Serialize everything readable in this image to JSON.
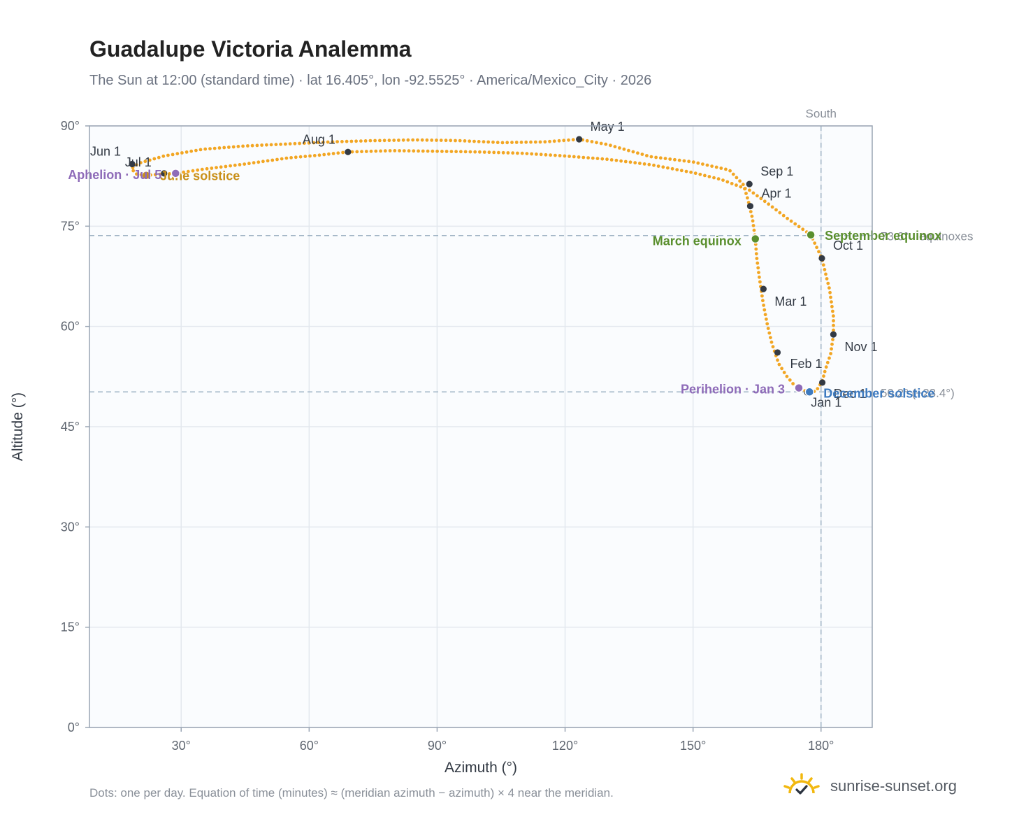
{
  "header": {
    "title": "Guadalupe Victoria Analemma",
    "subtitle": "The Sun at 12:00 (standard time) · lat 16.405°, lon -92.5525° · America/Mexico_City · 2026"
  },
  "footer": {
    "note": "Dots: one per day. Equation of time (minutes) ≈ (meridian azimuth − azimuth) × 4 near the meridian.",
    "brand": "sunrise-sunset.org"
  },
  "colors": {
    "path": "#f2a623",
    "month": "#333a44",
    "equinox": "#5a8f2e",
    "december": "#3d7abf",
    "june": "#c9901a",
    "aphelion": "#8e6bb8"
  },
  "chart_data": {
    "type": "scatter",
    "xlabel": "Azimuth (°)",
    "ylabel": "Altitude (°)",
    "xlim": [
      8.5,
      192
    ],
    "ylim": [
      0,
      90
    ],
    "xticks": [
      30,
      60,
      90,
      120,
      150,
      180
    ],
    "xtick_labels": [
      "30°",
      "60°",
      "90°",
      "120°",
      "150°",
      "180°"
    ],
    "yticks": [
      0,
      15,
      30,
      45,
      60,
      75,
      90
    ],
    "ytick_labels": [
      "0°",
      "15°",
      "30°",
      "45°",
      "60°",
      "75°",
      "90°"
    ],
    "grid": true,
    "meridian": {
      "azimuth": 180,
      "label": "South"
    },
    "reference_lines": [
      {
        "altitude": 73.6,
        "label": "73.6° · equinoxes"
      },
      {
        "altitude": 50.2,
        "label": "50.2° (−23.4°)"
      }
    ],
    "path_anchors": [
      [
        177.3,
        50.2
      ],
      [
        175.4,
        50.5
      ],
      [
        173.6,
        51.3
      ],
      [
        171.9,
        52.6
      ],
      [
        170.1,
        54.4
      ],
      [
        168.5,
        57.4
      ],
      [
        167.5,
        60.0
      ],
      [
        166.4,
        63.6
      ],
      [
        165.6,
        67.0
      ],
      [
        164.9,
        70.4
      ],
      [
        164.6,
        73.1
      ],
      [
        163.9,
        76.2
      ],
      [
        162.9,
        78.9
      ],
      [
        161.8,
        81.2
      ],
      [
        158.5,
        83.4
      ],
      [
        150.0,
        84.6
      ],
      [
        140.0,
        85.4
      ],
      [
        130.0,
        87.2
      ],
      [
        123.3,
        88.0
      ],
      [
        115.0,
        87.6
      ],
      [
        105.0,
        87.5
      ],
      [
        95.0,
        87.8
      ],
      [
        85.0,
        87.9
      ],
      [
        75.0,
        87.8
      ],
      [
        65.0,
        87.6
      ],
      [
        55.0,
        87.3
      ],
      [
        45.0,
        87.0
      ],
      [
        35.0,
        86.5
      ],
      [
        26.0,
        85.5
      ],
      [
        20.0,
        84.4
      ],
      [
        18.3,
        83.6
      ],
      [
        19.5,
        82.8
      ],
      [
        21.8,
        82.6
      ],
      [
        26.0,
        82.8
      ],
      [
        28.7,
        82.9
      ],
      [
        35.0,
        83.5
      ],
      [
        45.0,
        84.3
      ],
      [
        55.0,
        85.2
      ],
      [
        62.0,
        85.6
      ],
      [
        69.0,
        86.1
      ],
      [
        80.0,
        86.3
      ],
      [
        90.0,
        86.2
      ],
      [
        100.0,
        86.1
      ],
      [
        110.0,
        85.9
      ],
      [
        120.0,
        85.5
      ],
      [
        130.0,
        85.0
      ],
      [
        140.0,
        84.2
      ],
      [
        150.0,
        83.0
      ],
      [
        156.5,
        82.0
      ],
      [
        163.2,
        80.4
      ],
      [
        167.5,
        78.4
      ],
      [
        172.0,
        76.2
      ],
      [
        177.6,
        73.7
      ],
      [
        180.2,
        70.2
      ],
      [
        182.0,
        65.5
      ],
      [
        182.9,
        61.5
      ],
      [
        182.9,
        58.8
      ],
      [
        182.3,
        56.0
      ],
      [
        181.0,
        53.5
      ],
      [
        180.3,
        51.8
      ],
      [
        178.8,
        50.3
      ],
      [
        177.3,
        50.2
      ]
    ],
    "month_points": [
      {
        "label": "Jan 1",
        "az": 176.8,
        "alt": 50.1,
        "dx": 5,
        "dy": 20,
        "anchor": "start"
      },
      {
        "label": "Feb 1",
        "az": 169.8,
        "alt": 56.1,
        "dx": 18,
        "dy": 22,
        "anchor": "start"
      },
      {
        "label": "Mar 1",
        "az": 166.5,
        "alt": 65.6,
        "dx": 16,
        "dy": 24,
        "anchor": "start"
      },
      {
        "label": "Apr 1",
        "az": 163.4,
        "alt": 78.0,
        "dx": 16,
        "dy": -12,
        "anchor": "start"
      },
      {
        "label": "May 1",
        "az": 123.3,
        "alt": 88.0,
        "dx": 16,
        "dy": -12,
        "anchor": "start"
      },
      {
        "label": "Jun 1",
        "az": 18.5,
        "alt": 84.3,
        "dx": -16,
        "dy": -12,
        "anchor": "end"
      },
      {
        "label": "Jul 1",
        "az": 26.0,
        "alt": 82.9,
        "dx": -18,
        "dy": -10,
        "anchor": "end"
      },
      {
        "label": "Aug 1",
        "az": 69.1,
        "alt": 86.1,
        "dx": -18,
        "dy": -12,
        "anchor": "end"
      },
      {
        "label": "Sep 1",
        "az": 163.2,
        "alt": 81.3,
        "dx": 16,
        "dy": -12,
        "anchor": "start"
      },
      {
        "label": "Oct 1",
        "az": 180.2,
        "alt": 70.2,
        "dx": 16,
        "dy": -12,
        "anchor": "start"
      },
      {
        "label": "Nov 1",
        "az": 182.9,
        "alt": 58.8,
        "dx": 16,
        "dy": 24,
        "anchor": "start"
      },
      {
        "label": "Dec 1",
        "az": 180.3,
        "alt": 51.6,
        "dx": 16,
        "dy": 22,
        "anchor": "start"
      }
    ],
    "events": [
      {
        "label": "March equinox",
        "az": 164.6,
        "alt": 73.1,
        "color": "#5a8f2e",
        "dx": -20,
        "dy": 9,
        "anchor": "end"
      },
      {
        "label": "September equinox",
        "az": 177.6,
        "alt": 73.7,
        "color": "#5a8f2e",
        "dx": 20,
        "dy": 7,
        "anchor": "start"
      },
      {
        "label": "December solstice",
        "az": 177.3,
        "alt": 50.2,
        "color": "#3d7abf",
        "dx": 20,
        "dy": 8,
        "anchor": "start"
      },
      {
        "label": "June solstice",
        "az": 21.8,
        "alt": 82.6,
        "color": "#c9901a",
        "dx": 20,
        "dy": 7,
        "anchor": "start"
      },
      {
        "label": "Perihelion · Jan 3",
        "az": 174.8,
        "alt": 50.8,
        "color": "#8e6bb8",
        "dx": -20,
        "dy": 8,
        "anchor": "end"
      },
      {
        "label": "Aphelion · Jul 5",
        "az": 28.7,
        "alt": 82.9,
        "color": "#8e6bb8",
        "dx": -20,
        "dy": 8,
        "anchor": "end"
      }
    ]
  }
}
